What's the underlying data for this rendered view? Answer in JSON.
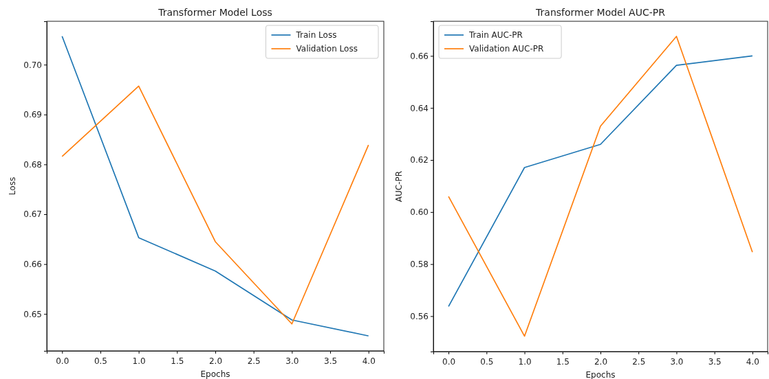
{
  "chart_data": [
    {
      "type": "line",
      "title": "Transformer Model Loss",
      "xlabel": "Epochs",
      "ylabel": "Loss",
      "x": [
        0,
        1,
        2,
        3,
        4
      ],
      "series": [
        {
          "name": "Train Loss",
          "color": "#1f77b4",
          "values": [
            0.7057,
            0.6653,
            0.6586,
            0.6488,
            0.6456
          ]
        },
        {
          "name": "Validation Loss",
          "color": "#ff7f0e",
          "values": [
            0.6816,
            0.6957,
            0.6645,
            0.648,
            0.6839
          ]
        }
      ],
      "xlim": [
        -0.2,
        4.2
      ],
      "xticks": [
        {
          "value": 0,
          "label": "0.0"
        },
        0.5,
        {
          "value": 1,
          "label": "1.0"
        },
        1.5,
        {
          "value": 2,
          "label": "2.0"
        },
        2.5,
        {
          "value": 3,
          "label": "3.0"
        },
        3.5,
        {
          "value": 4,
          "label": "4.0"
        }
      ],
      "ylim": [
        0.6426,
        0.7087
      ],
      "yticks": [
        {
          "value": 0.65,
          "label": "0.65"
        },
        {
          "value": 0.66,
          "label": "0.66"
        },
        {
          "value": 0.67,
          "label": "0.67"
        },
        {
          "value": 0.68,
          "label": "0.68"
        },
        {
          "value": 0.69,
          "label": "0.69"
        },
        {
          "value": 0.7,
          "label": "0.70"
        }
      ],
      "legend": "top right",
      "grid": false,
      "marker": "none",
      "line_style": "solid"
    },
    {
      "type": "line",
      "title": "Transformer Model AUC-PR",
      "xlabel": "Epochs",
      "ylabel": "AUC-PR",
      "x": [
        0,
        1,
        2,
        3,
        4
      ],
      "series": [
        {
          "name": "Train AUC-PR",
          "color": "#1f77b4",
          "values": [
            0.5637,
            0.6171,
            0.626,
            0.6564,
            0.66
          ]
        },
        {
          "name": "Validation AUC-PR",
          "color": "#ff7f0e",
          "values": [
            0.606,
            0.5523,
            0.633,
            0.6675,
            0.5846
          ]
        }
      ],
      "xlim": [
        -0.2,
        4.2
      ],
      "xticks": [
        {
          "value": 0,
          "label": "0.0"
        },
        0.5,
        {
          "value": 1,
          "label": "1.0"
        },
        1.5,
        {
          "value": 2,
          "label": "2.0"
        },
        2.5,
        {
          "value": 3,
          "label": "3.0"
        },
        3.5,
        {
          "value": 4,
          "label": "4.0"
        }
      ],
      "ylim": [
        0.5464,
        0.6733
      ],
      "yticks": [
        0.56,
        0.58,
        {
          "value": 0.6,
          "label": "0.60"
        },
        0.62,
        0.64,
        0.66
      ],
      "legend": "top left",
      "grid": false,
      "marker": "none",
      "line_style": "solid"
    }
  ]
}
